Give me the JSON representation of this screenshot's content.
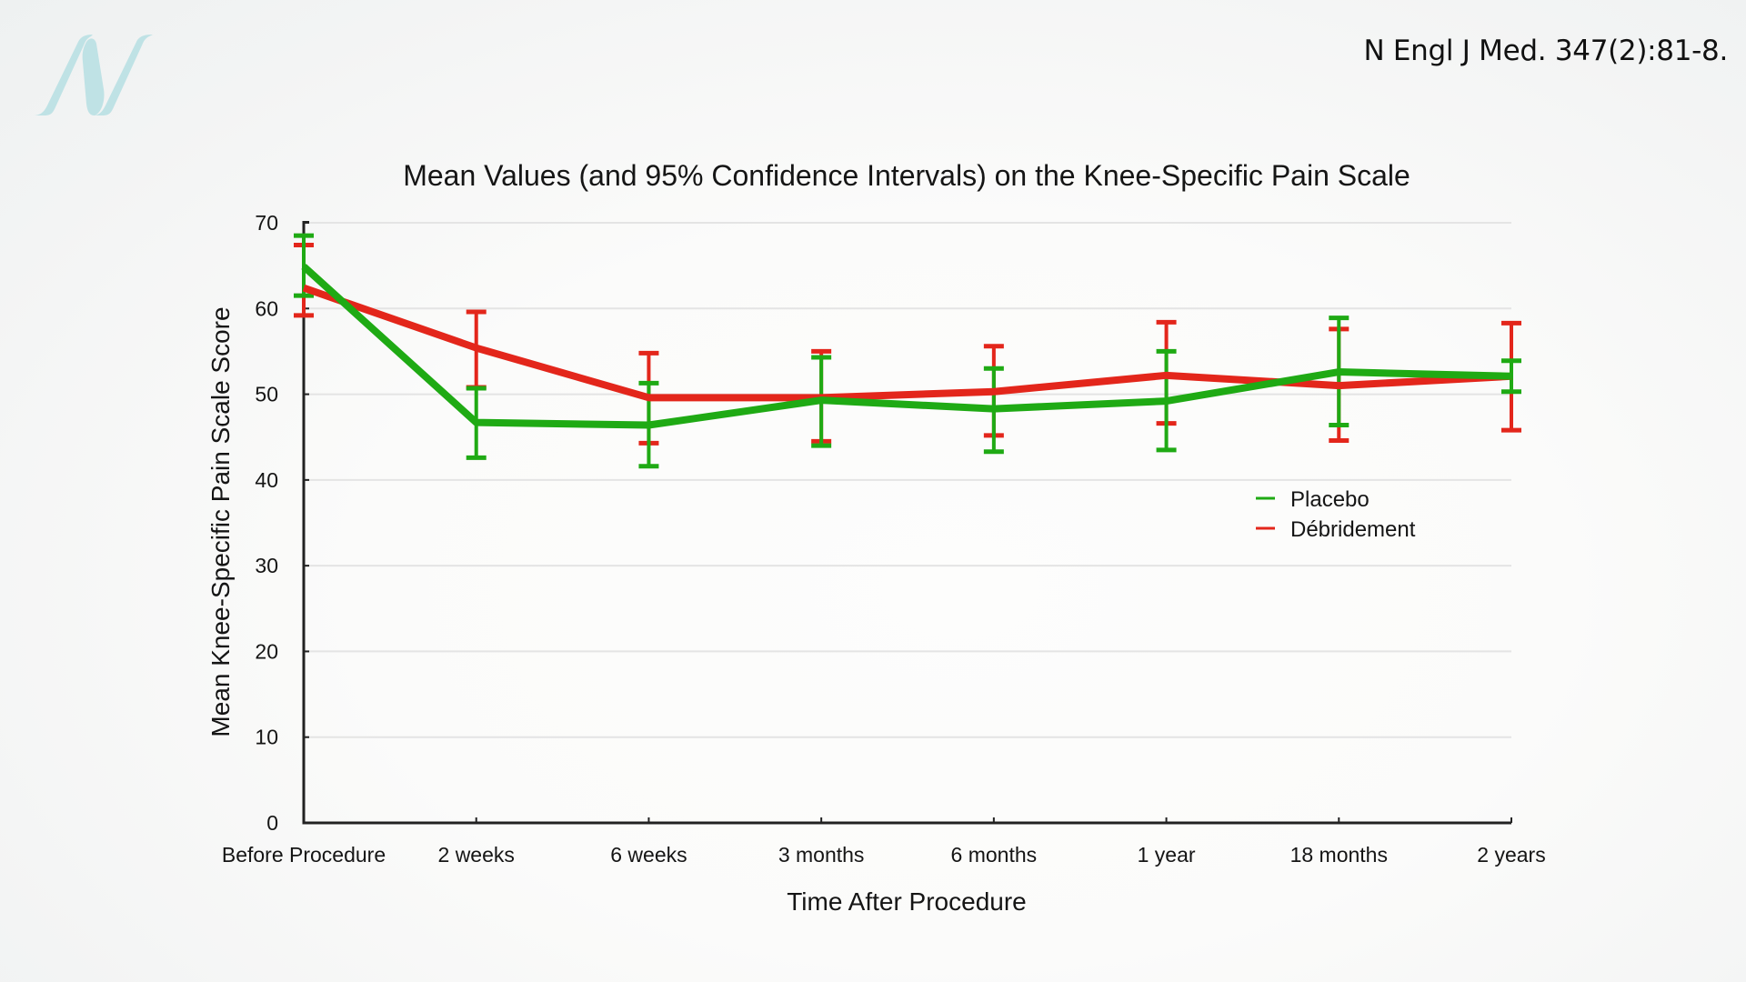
{
  "citation": "N Engl J Med. 347(2):81-8.",
  "logo": {
    "icon": "brand-n-logo-icon",
    "color": "#bfe2e5"
  },
  "chart_data": {
    "type": "line",
    "title": "Mean Values (and 95% Confidence Intervals) on the Knee-Specific Pain Scale",
    "xlabel": "Time After Procedure",
    "ylabel": "Mean Knee-Specific Pain Scale Score",
    "categories": [
      "Before Procedure",
      "2 weeks",
      "6 weeks",
      "3 months",
      "6 months",
      "1 year",
      "18 months",
      "2 years"
    ],
    "ylim": [
      0,
      70
    ],
    "yticks": [
      0,
      10,
      20,
      30,
      40,
      50,
      60,
      70
    ],
    "grid": true,
    "legend_position": "right-middle",
    "error_bars": "95% confidence interval",
    "series": [
      {
        "name": "Placebo",
        "color": "#1faa14",
        "values": [
          64.9,
          46.7,
          46.4,
          49.3,
          48.3,
          49.2,
          52.6,
          52.1
        ],
        "ci_lower": [
          61.5,
          42.6,
          41.6,
          44.0,
          43.3,
          43.5,
          46.4,
          50.3
        ],
        "ci_upper": [
          68.5,
          50.7,
          51.3,
          54.3,
          53.0,
          55.0,
          58.9,
          53.9
        ]
      },
      {
        "name": "Débridement",
        "color": "#e3261b",
        "values": [
          62.4,
          55.4,
          49.6,
          49.6,
          50.3,
          52.2,
          51.0,
          52.1
        ],
        "ci_lower": [
          59.2,
          50.8,
          44.3,
          44.5,
          45.2,
          46.6,
          44.6,
          45.8
        ],
        "ci_upper": [
          67.4,
          59.6,
          54.8,
          55.0,
          55.6,
          58.4,
          57.6,
          58.3
        ]
      }
    ]
  }
}
